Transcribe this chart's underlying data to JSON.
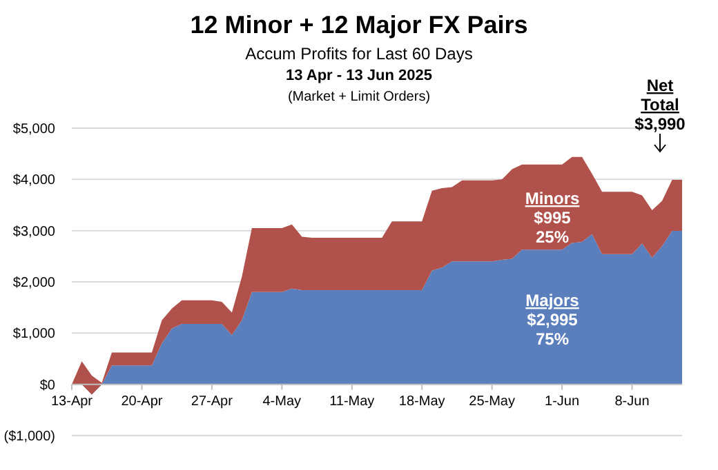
{
  "chart_data": {
    "type": "area",
    "stacked": true,
    "title": "12 Minor + 12 Major FX Pairs",
    "subtitle": "Accum Profits for Last 60 Days",
    "x": [
      "2025-04-13",
      "2025-04-14",
      "2025-04-15",
      "2025-04-16",
      "2025-04-17",
      "2025-04-18",
      "2025-04-19",
      "2025-04-20",
      "2025-04-21",
      "2025-04-22",
      "2025-04-23",
      "2025-04-24",
      "2025-04-25",
      "2025-04-26",
      "2025-04-27",
      "2025-04-28",
      "2025-04-29",
      "2025-04-30",
      "2025-05-01",
      "2025-05-02",
      "2025-05-03",
      "2025-05-04",
      "2025-05-05",
      "2025-05-06",
      "2025-05-07",
      "2025-05-08",
      "2025-05-09",
      "2025-05-10",
      "2025-05-11",
      "2025-05-12",
      "2025-05-13",
      "2025-05-14",
      "2025-05-15",
      "2025-05-16",
      "2025-05-17",
      "2025-05-18",
      "2025-05-19",
      "2025-05-20",
      "2025-05-21",
      "2025-05-22",
      "2025-05-23",
      "2025-05-24",
      "2025-05-25",
      "2025-05-26",
      "2025-05-27",
      "2025-05-28",
      "2025-05-29",
      "2025-05-30",
      "2025-05-31",
      "2025-06-01",
      "2025-06-02",
      "2025-06-03",
      "2025-06-04",
      "2025-06-05",
      "2025-06-06",
      "2025-06-07",
      "2025-06-08",
      "2025-06-09",
      "2025-06-10",
      "2025-06-11",
      "2025-06-12",
      "2025-06-13"
    ],
    "series": [
      {
        "color": "#5b7fbd",
        "values": [
          0,
          0,
          -200,
          0,
          370,
          370,
          370,
          370,
          370,
          800,
          1090,
          1180,
          1180,
          1180,
          1180,
          1180,
          960,
          1250,
          1800,
          1800,
          1800,
          1800,
          1870,
          1840,
          1840,
          1840,
          1840,
          1840,
          1840,
          1840,
          1840,
          1840,
          1840,
          1840,
          1840,
          1840,
          2220,
          2280,
          2400,
          2400,
          2400,
          2400,
          2400,
          2430,
          2450,
          2630,
          2630,
          2630,
          2630,
          2630,
          2760,
          2780,
          2930,
          2540,
          2540,
          2540,
          2540,
          2750,
          2470,
          2700,
          2995,
          2995
        ]
      },
      {
        "color": "#b0524b",
        "values": [
          0,
          450,
          370,
          30,
          250,
          250,
          250,
          250,
          250,
          450,
          390,
          460,
          460,
          460,
          460,
          430,
          440,
          850,
          1250,
          1250,
          1250,
          1250,
          1250,
          1040,
          1020,
          1020,
          1020,
          1020,
          1020,
          1020,
          1020,
          1020,
          1340,
          1340,
          1340,
          1340,
          1560,
          1550,
          1450,
          1580,
          1580,
          1580,
          1580,
          1570,
          1750,
          1660,
          1660,
          1660,
          1660,
          1660,
          1680,
          1660,
          1180,
          1220,
          1220,
          1220,
          1220,
          940,
          930,
          880,
          995,
          995
        ]
      }
    ],
    "xlim": [
      "2025-04-13",
      "2025-06-13"
    ],
    "xticks": [
      {
        "value": "2025-04-13",
        "label": "13-Apr"
      },
      {
        "value": "2025-04-20",
        "label": "20-Apr"
      },
      {
        "value": "2025-04-27",
        "label": "27-Apr"
      },
      {
        "value": "2025-05-04",
        "label": "4-May"
      },
      {
        "value": "2025-05-11",
        "label": "11-May"
      },
      {
        "value": "2025-05-18",
        "label": "18-May"
      },
      {
        "value": "2025-05-25",
        "label": "25-May"
      },
      {
        "value": "2025-06-01",
        "label": "1-Jun"
      },
      {
        "value": "2025-06-08",
        "label": "8-Jun"
      }
    ],
    "ylim": [
      -1000,
      5000
    ],
    "yticks": [
      {
        "value": -1000,
        "label": "($1,000)"
      },
      {
        "value": 0,
        "label": "$0"
      },
      {
        "value": 1000,
        "label": "$1,000"
      },
      {
        "value": 2000,
        "label": "$2,000"
      },
      {
        "value": 3000,
        "label": "$3,000"
      },
      {
        "value": 4000,
        "label": "$4,000"
      },
      {
        "value": 5000,
        "label": "$5,000"
      }
    ],
    "grid": "y",
    "annotations": [
      "13 Apr - 13 Jun 2025",
      "(Market + Limit Orders)",
      "Minors\n$995\n25%",
      "Majors\n$2,995\n75%",
      "Net\nTotal\n$3,990"
    ]
  }
}
